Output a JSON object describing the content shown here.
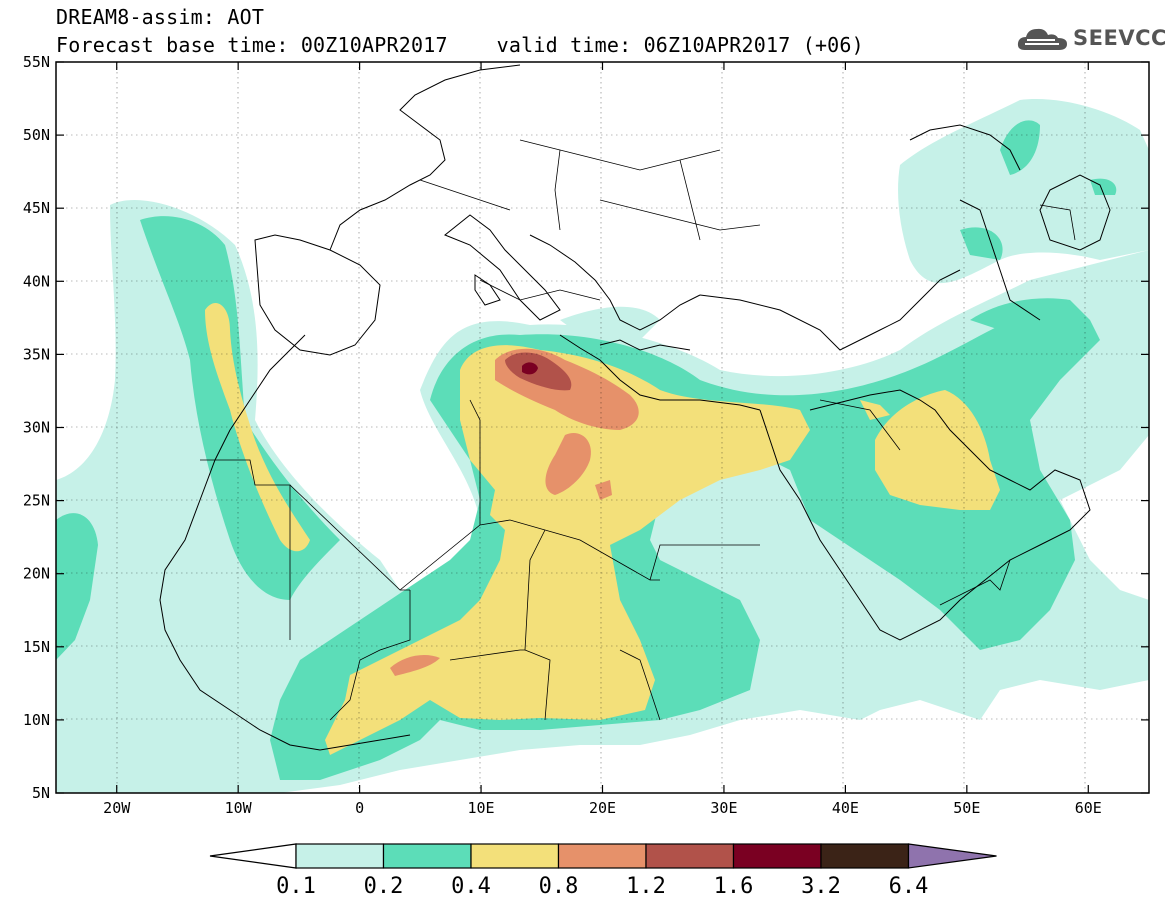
{
  "header": {
    "line1": "DREAM8-assim: AOT",
    "line2": "Forecast base time: 00Z10APR2017    valid time: 06Z10APR2017 (+06)"
  },
  "logo": {
    "text": "SEEVCCC",
    "icon": "cloud-icon",
    "color": "#555555"
  },
  "map": {
    "lon_range": [
      -25,
      65
    ],
    "lat_range": [
      5,
      55
    ],
    "lon_ticks": [
      "20W",
      "10W",
      "0",
      "10E",
      "20E",
      "30E",
      "40E",
      "50E",
      "60E"
    ],
    "lat_ticks": [
      "55N",
      "50N",
      "45N",
      "40N",
      "35N",
      "30N",
      "25N",
      "20N",
      "15N",
      "10N",
      "5N"
    ]
  },
  "colorbar": {
    "labels": [
      "0.1",
      "0.2",
      "0.4",
      "0.8",
      "1.2",
      "1.6",
      "3.2",
      "6.4"
    ],
    "colors": [
      "#c6f1e8",
      "#5cddb8",
      "#f3e07a",
      "#e6916a",
      "#b1524a",
      "#7a0022",
      "#3b2317",
      "#8f73ad"
    ]
  }
}
